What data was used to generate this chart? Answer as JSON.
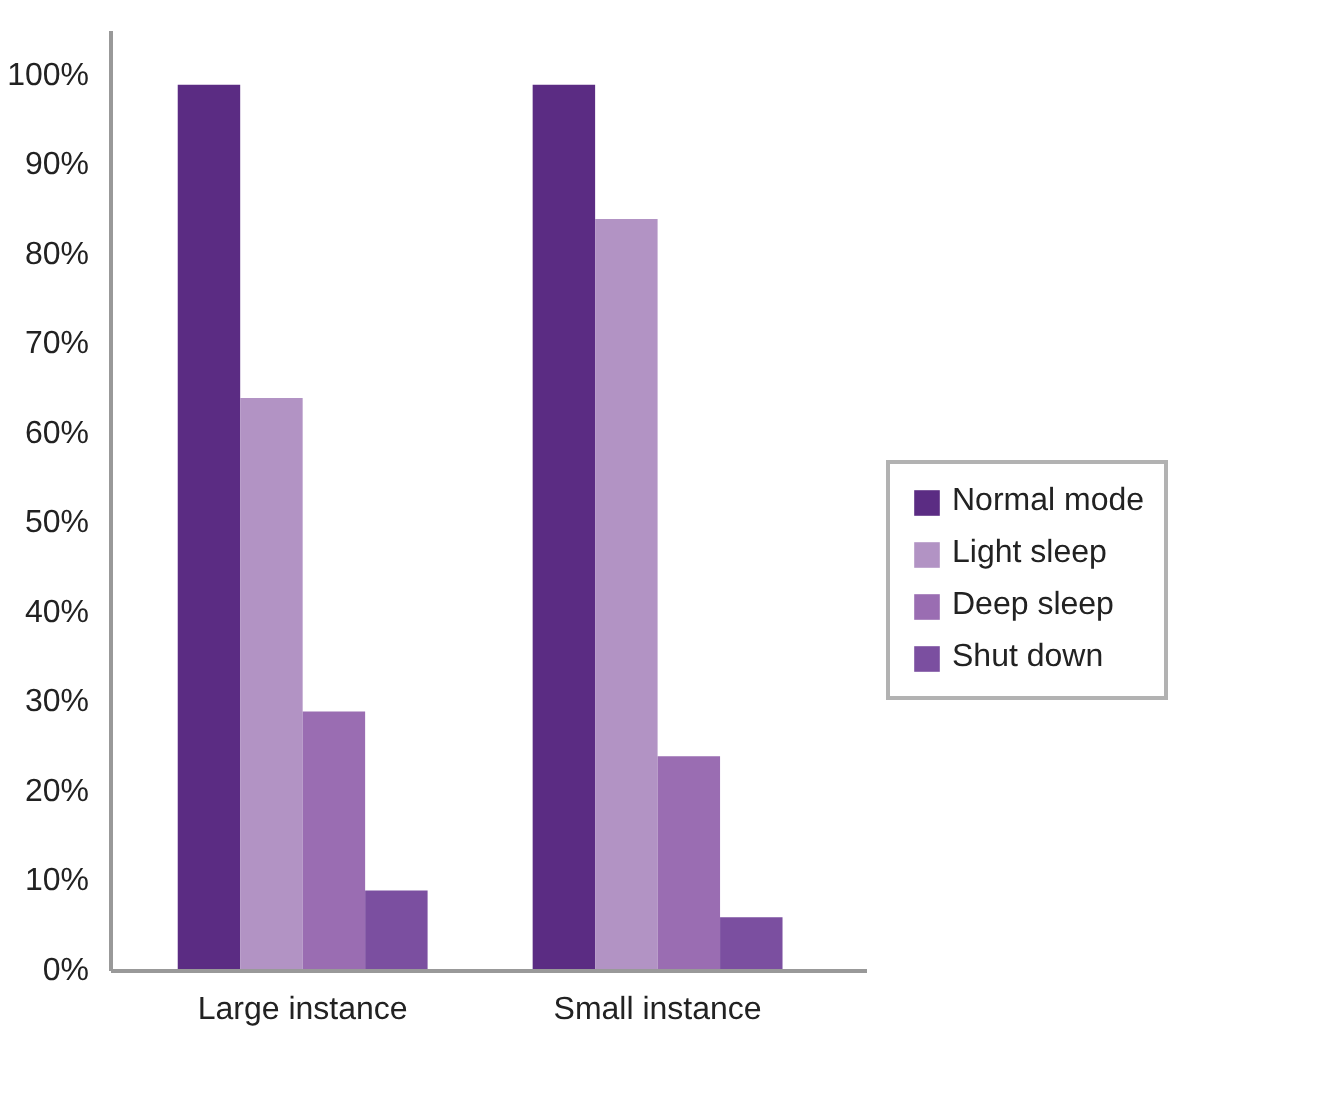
{
  "chart_data": {
    "type": "bar",
    "categories": [
      "Large instance",
      "Small instance"
    ],
    "series": [
      {
        "name": "Normal mode",
        "color": "#5b2c83",
        "values": [
          99,
          99
        ]
      },
      {
        "name": "Light sleep",
        "color": "#b293c4",
        "values": [
          64,
          84
        ]
      },
      {
        "name": "Deep sleep",
        "color": "#9a6db2",
        "values": [
          29,
          24
        ]
      },
      {
        "name": "Shut down",
        "color": "#7b4fa0",
        "values": [
          9,
          6
        ]
      }
    ],
    "ylim": [
      0,
      105
    ],
    "yticks": [
      {
        "value": 0,
        "label": "0%"
      },
      {
        "value": 10,
        "label": "10%"
      },
      {
        "value": 20,
        "label": "20%"
      },
      {
        "value": 30,
        "label": "30%"
      },
      {
        "value": 40,
        "label": "40%"
      },
      {
        "value": 50,
        "label": "50%"
      },
      {
        "value": 60,
        "label": "60%"
      },
      {
        "value": 70,
        "label": "70%"
      },
      {
        "value": 80,
        "label": "80%"
      },
      {
        "value": 90,
        "label": "90%"
      },
      {
        "value": 100,
        "label": "100%"
      }
    ],
    "grid": false,
    "legend": "right"
  }
}
